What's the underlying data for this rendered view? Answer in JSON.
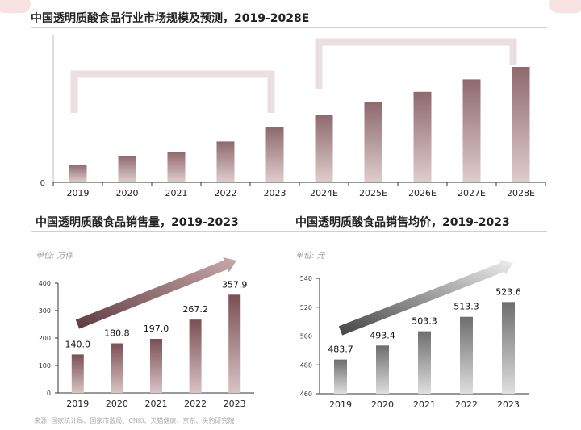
{
  "top_title": "中国透明质酸食品行业市场规模及预测，2019-2028E",
  "left_title": "中国透明质酸食品销售量，2019-2023",
  "right_title": "中国透明质酸食品销售均价，2019-2023",
  "left_unit": "单位:  万件",
  "right_unit": "单位:  元",
  "source": "来源:  国家统计局、国家市监局、CNKI、天猫健康、京东、头豹研究院",
  "colors": {
    "bar_dark": "#7a4f55",
    "bar_light": "#d9c3c5",
    "gray_dark": "#6e6e6e",
    "gray_light": "#dedede"
  },
  "chart_data": [
    {
      "type": "bar",
      "title": "中国透明质酸食品行业市场规模及预测，2019-2028E",
      "categories": [
        "2019",
        "2020",
        "2021",
        "2022",
        "2023",
        "2024E",
        "2025E",
        "2026E",
        "2027E",
        "2028E"
      ],
      "values": [
        10,
        15,
        17,
        23,
        31,
        38,
        45,
        51,
        58,
        65
      ],
      "ytick_labels": [
        "0"
      ],
      "ylim": [
        0,
        80
      ],
      "grid": false,
      "legend": "none"
    },
    {
      "type": "bar",
      "title": "中国透明质酸食品销售量，2019-2023",
      "categories": [
        "2019",
        "2020",
        "2021",
        "2022",
        "2023"
      ],
      "values": [
        140.0,
        180.8,
        197.0,
        267.2,
        357.9
      ],
      "data_labels": [
        "140.0",
        "180.8",
        "197.0",
        "267.2",
        "357.9"
      ],
      "ylim": [
        0,
        400
      ],
      "yticks": [
        "0",
        "100",
        "200",
        "300",
        "400"
      ],
      "unit": "万件",
      "grid": false,
      "legend": "none"
    },
    {
      "type": "bar",
      "title": "中国透明质酸食品销售均价，2019-2023",
      "categories": [
        "2019",
        "2020",
        "2021",
        "2022",
        "2023"
      ],
      "values": [
        483.7,
        493.4,
        503.3,
        513.3,
        523.6
      ],
      "data_labels": [
        "483.7",
        "493.4",
        "503.3",
        "513.3",
        "523.6"
      ],
      "ylim": [
        460,
        540
      ],
      "yticks": [
        "460",
        "480",
        "500",
        "520",
        "540"
      ],
      "unit": "元",
      "grid": false,
      "legend": "none"
    }
  ]
}
